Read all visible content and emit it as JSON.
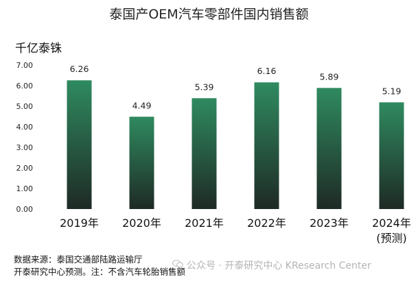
{
  "title": "泰国产OEM汽车零部件国内销售额",
  "unit_label": "千亿泰铢",
  "chart_data": {
    "type": "bar",
    "categories": [
      "2019年",
      "2020年",
      "2021年",
      "2022年",
      "2023年",
      "2024年"
    ],
    "category_sublabels": [
      "",
      "",
      "",
      "",
      "",
      "(预测)"
    ],
    "values": [
      6.26,
      4.49,
      5.39,
      6.16,
      5.89,
      5.19
    ],
    "value_labels": [
      "6.26",
      "4.49",
      "5.39",
      "6.16",
      "5.89",
      "5.19"
    ],
    "ylim": [
      0,
      7
    ],
    "yticks": [
      "0.00",
      "1.00",
      "2.00",
      "3.00",
      "4.00",
      "5.00",
      "6.00",
      "7.00"
    ],
    "grid": false,
    "colors": {
      "bar_top": "#2f8a60",
      "bar_bottom": "#1e2a25"
    }
  },
  "footer": {
    "source": "数据来源：泰国交通部陆路运输厅",
    "note": "开泰研究中心预测。注：不含汽车轮胎销售额"
  },
  "watermark": {
    "icon": "wechat-icon",
    "text": "公众号 · 开泰研究中心 KResearch Center"
  }
}
